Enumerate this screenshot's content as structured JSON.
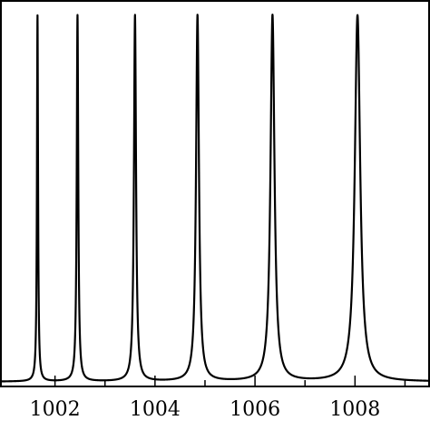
{
  "chart_data": {
    "type": "line",
    "title": "",
    "xlabel": "",
    "ylabel": "",
    "xlim": [
      1000.9,
      1009.5
    ],
    "ylim": [
      0,
      1
    ],
    "grid": false,
    "x_ticks": [
      1002,
      1003,
      1004,
      1005,
      1006,
      1007,
      1008,
      1009
    ],
    "x_tick_labels": [
      "1002",
      "",
      "1004",
      "",
      "1006",
      "",
      "1008",
      ""
    ],
    "peaks": [
      {
        "x": 1001.65,
        "height": 0.98,
        "width": 0.013
      },
      {
        "x": 1002.45,
        "height": 0.98,
        "width": 0.018
      },
      {
        "x": 1003.6,
        "height": 0.98,
        "width": 0.025
      },
      {
        "x": 1004.85,
        "height": 0.98,
        "width": 0.035
      },
      {
        "x": 1006.35,
        "height": 0.98,
        "width": 0.048
      },
      {
        "x": 1008.05,
        "height": 0.98,
        "width": 0.065
      }
    ],
    "baseline": 0.008,
    "series_color": "#000000"
  }
}
